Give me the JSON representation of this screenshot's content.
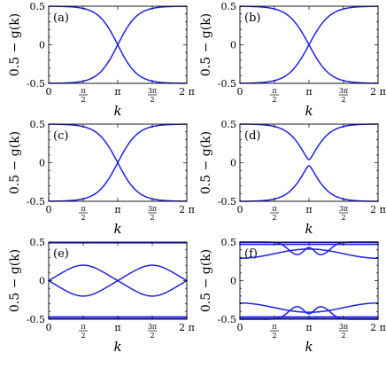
{
  "figure": {
    "ylabel": "0.5 − g(k)",
    "xlabel": "k"
  },
  "axes": {
    "xlim": [
      0,
      6.283185
    ],
    "ylim": [
      -0.5,
      0.5
    ],
    "x_ticks": [
      {
        "value": 0,
        "label": "0"
      },
      {
        "value": 1.570796,
        "label_num": "π",
        "label_den": "2"
      },
      {
        "value": 3.141593,
        "label": "π"
      },
      {
        "value": 4.712389,
        "label_num": "3π",
        "label_den": "2"
      },
      {
        "value": 6.283185,
        "label": "2 π"
      }
    ],
    "y_ticks": [
      {
        "value": 0.5,
        "label": "0.5"
      },
      {
        "value": 0,
        "label": "0"
      },
      {
        "value": -0.5,
        "label": "-0.5"
      }
    ]
  },
  "chart_data": [
    {
      "type": "line",
      "panel_label": "(a)",
      "curve_kind": "cross",
      "sharpness": 3.2
    },
    {
      "type": "line",
      "panel_label": "(b)",
      "curve_kind": "cross",
      "sharpness": 3.0
    },
    {
      "type": "line",
      "panel_label": "(c)",
      "curve_kind": "cross",
      "sharpness": 3.1
    },
    {
      "type": "line",
      "panel_label": "(d)",
      "curve_kind": "gap",
      "sharpness": 3.1,
      "gap_half": 0.04
    },
    {
      "type": "line",
      "panel_label": "(e)",
      "curve_kind": "figure8",
      "amplitude": 0.2,
      "flat_bands": [
        0.49,
        -0.49,
        -0.47
      ]
    },
    {
      "type": "line",
      "panel_label": "(f)",
      "curve_kind": "bumps",
      "flat_bands": [
        0.495,
        0.47,
        -0.49,
        -0.47
      ]
    }
  ]
}
